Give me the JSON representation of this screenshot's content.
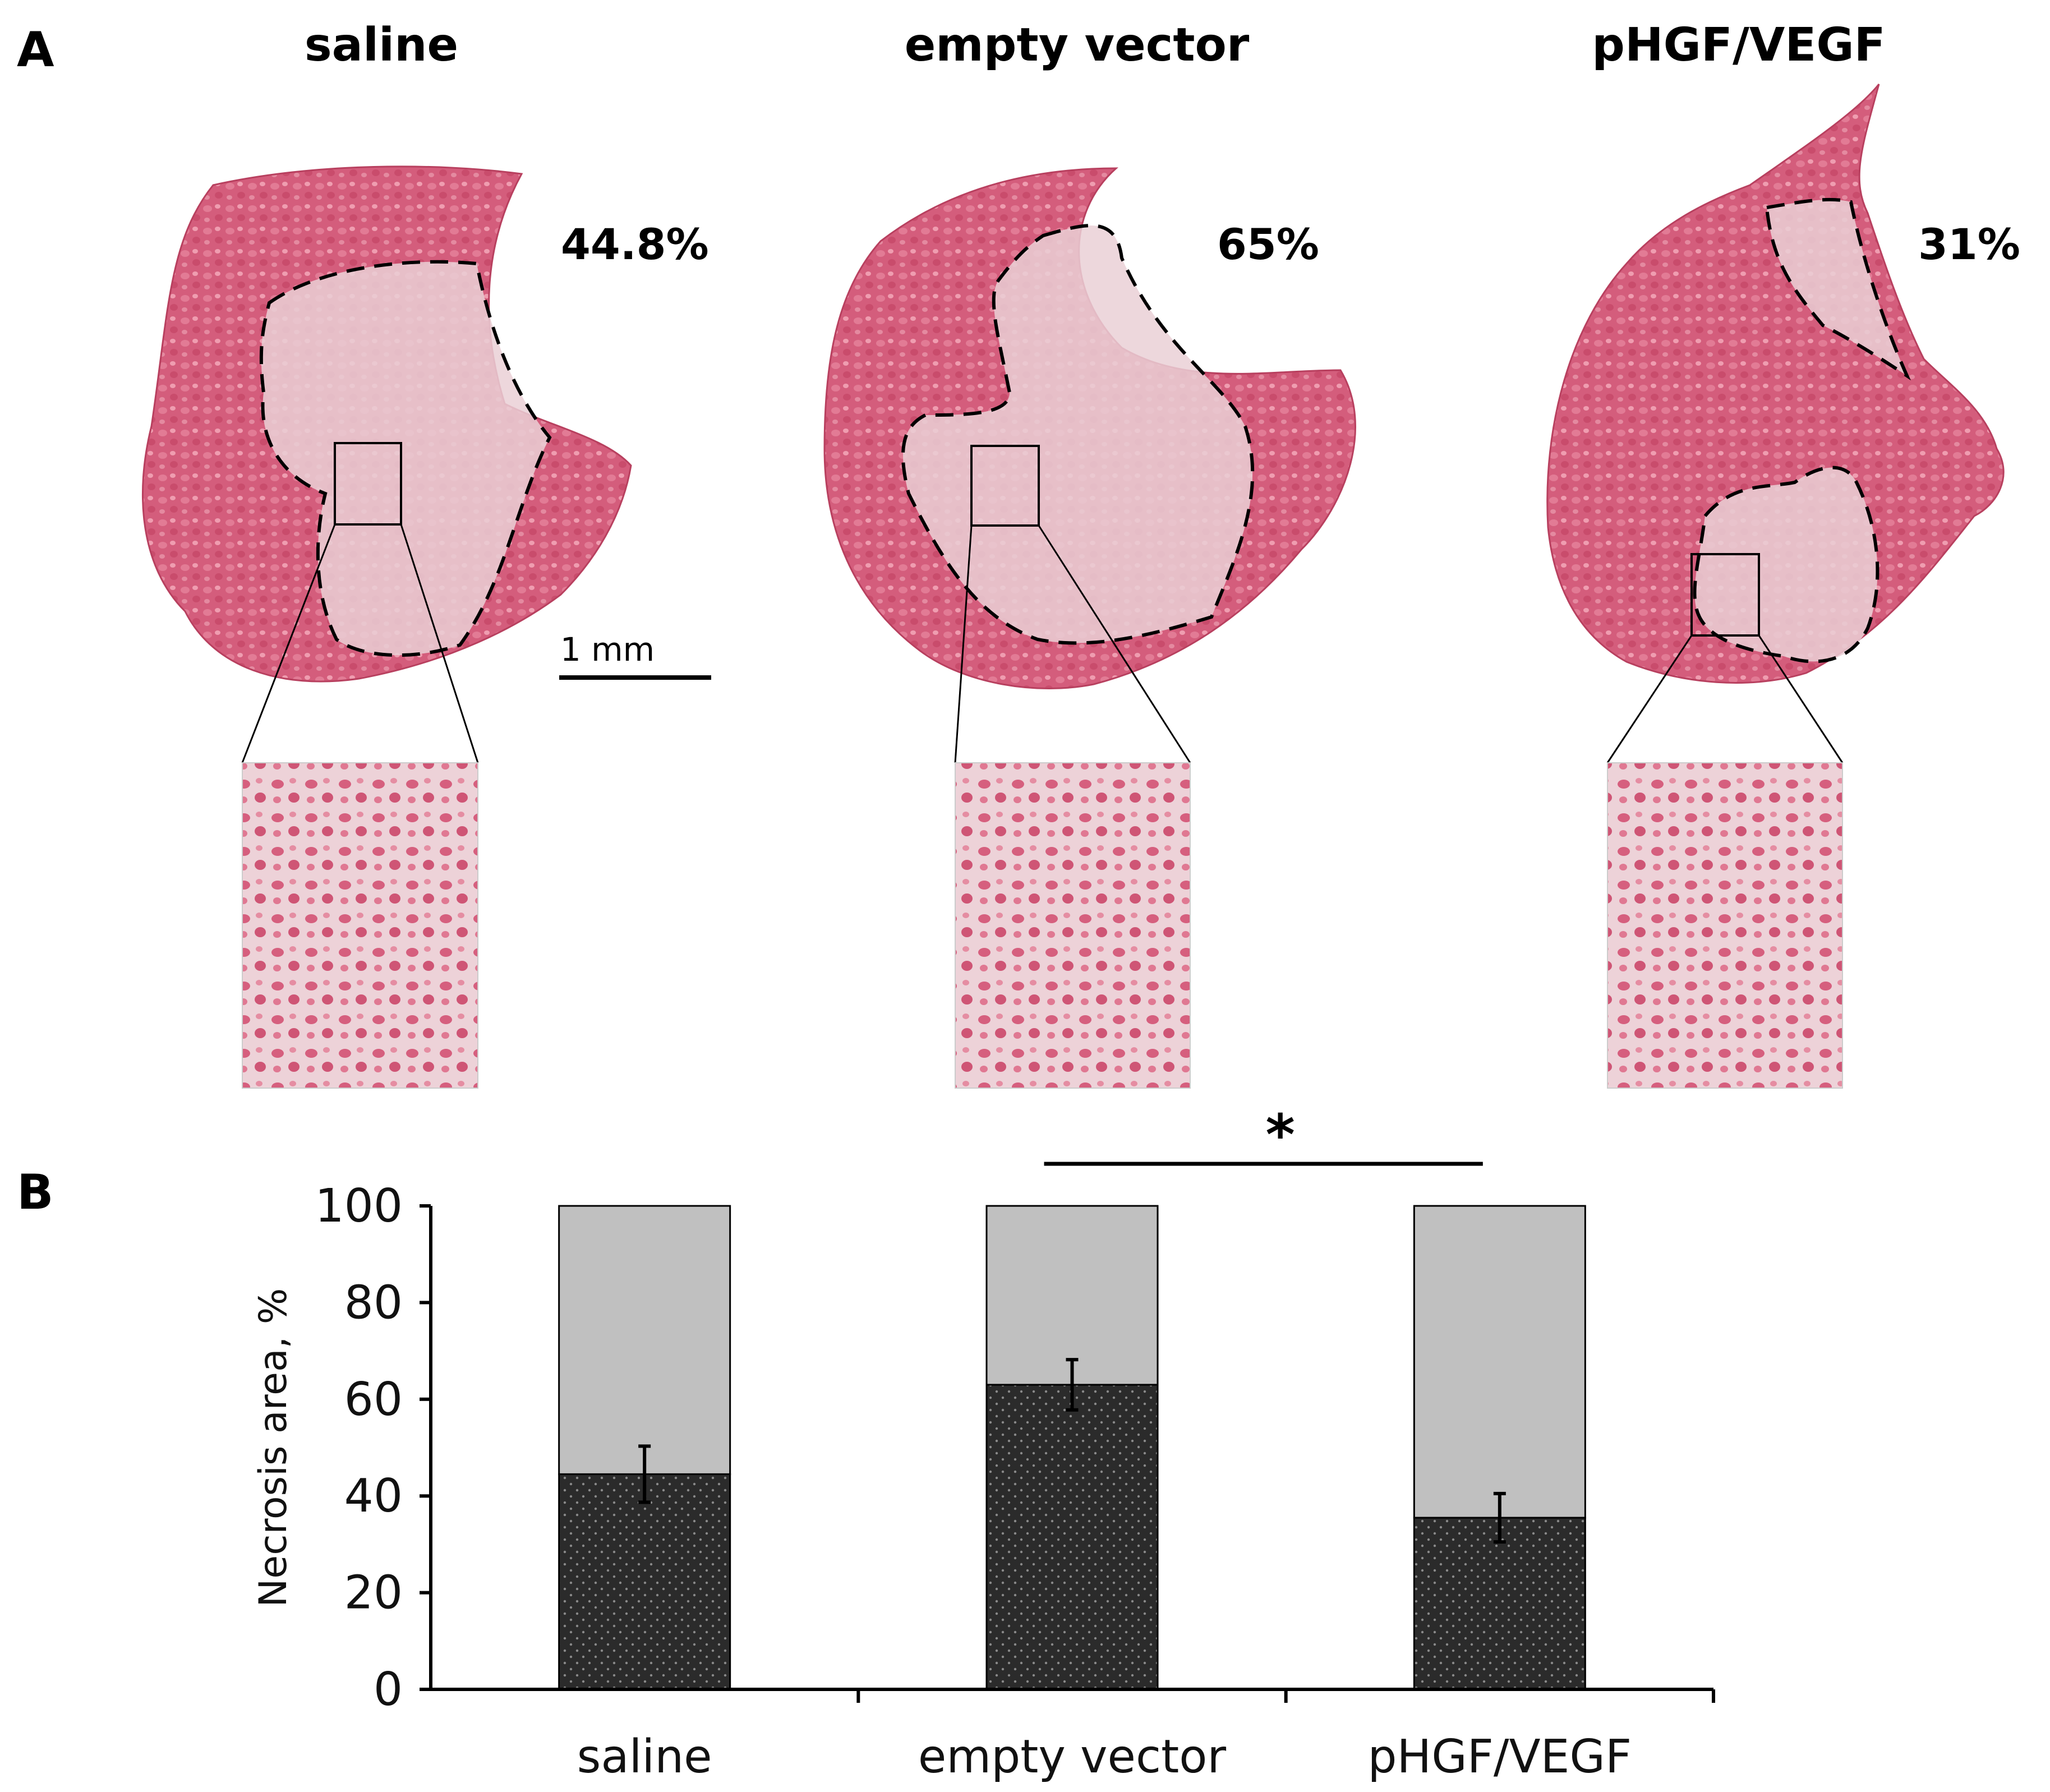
{
  "panel_a": {
    "letter": "A",
    "scale_bar_label": "1 mm",
    "sections": [
      {
        "title": "saline",
        "necrosis_label": "44.8%"
      },
      {
        "title": "empty vector",
        "necrosis_label": "65%"
      },
      {
        "title": "pHGF/VEGF",
        "necrosis_label": "31%"
      }
    ]
  },
  "panel_b": {
    "letter": "B",
    "significance_marker": "*"
  },
  "colors": {
    "tissue": "#d45d7c",
    "tissue_pale": "#ead0d6",
    "bar_necrosis": "#2b2b2b",
    "bar_rest": "#c0c0c0"
  },
  "chart_data": {
    "type": "bar",
    "stacked": true,
    "categories": [
      "saline",
      "empty vector",
      "pHGF/VEGF"
    ],
    "series": [
      {
        "values": [
          44.5,
          63,
          35.5
        ],
        "error": [
          5.8,
          5.2,
          5.0
        ]
      },
      {
        "values": [
          55.5,
          37,
          64.5
        ]
      }
    ],
    "xlabel": "",
    "ylabel": "Necrosis area, %",
    "ylim": [
      0,
      100
    ],
    "yticks": [
      0,
      20,
      40,
      60,
      80,
      100
    ],
    "significance": {
      "between": [
        "empty vector",
        "pHGF/VEGF"
      ],
      "label": "*"
    }
  }
}
